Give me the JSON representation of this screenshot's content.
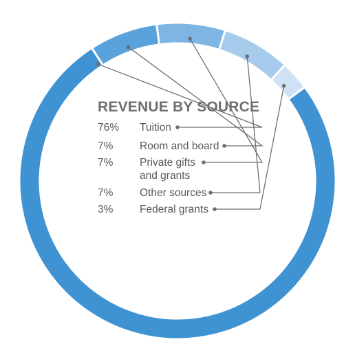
{
  "chart_data": {
    "type": "pie",
    "style": "donut",
    "title": "REVENUE BY SOURCE",
    "slices": [
      {
        "pct_label": "76%",
        "label_lines": [
          "Tuition"
        ],
        "value": 76,
        "color": "#3f93d2"
      },
      {
        "pct_label": "7%",
        "label_lines": [
          "Room and board"
        ],
        "value": 7,
        "color": "#5aa2db"
      },
      {
        "pct_label": "7%",
        "label_lines": [
          "Private gifts",
          "and grants"
        ],
        "value": 7,
        "color": "#7eb5e3"
      },
      {
        "pct_label": "7%",
        "label_lines": [
          "Other sources"
        ],
        "value": 7,
        "color": "#a6cbed"
      },
      {
        "pct_label": "3%",
        "label_lines": [
          "Federal grants"
        ],
        "value": 3,
        "color": "#cfe2f5"
      }
    ]
  }
}
